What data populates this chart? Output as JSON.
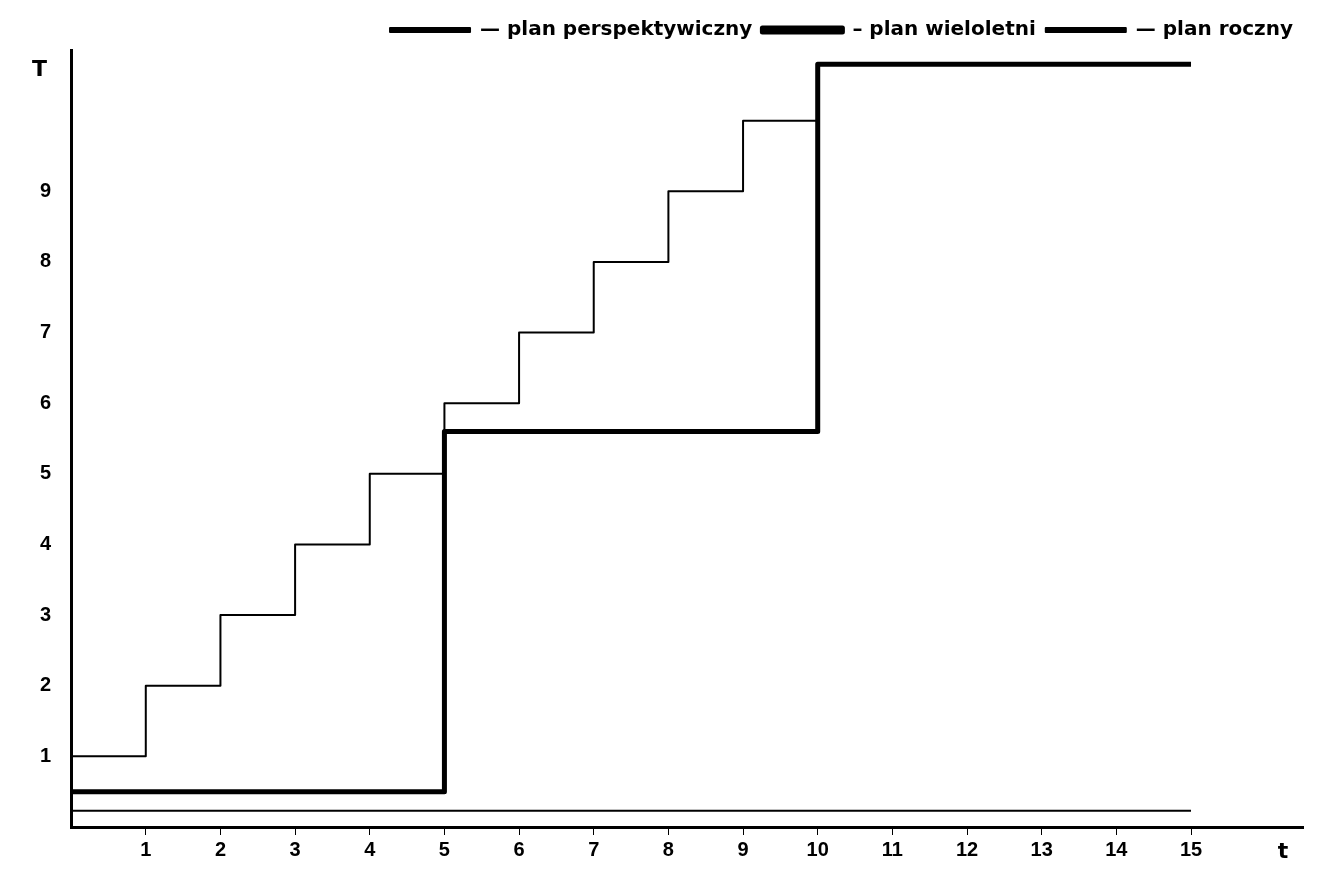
{
  "chart_data": {
    "type": "step",
    "xlabel": "t",
    "ylabel": "T",
    "xlim": [
      0,
      16.5
    ],
    "ylim": [
      0,
      11
    ],
    "xticks": [
      1,
      2,
      3,
      4,
      5,
      6,
      7,
      8,
      9,
      10,
      11,
      12,
      13,
      14,
      15
    ],
    "yticks": [
      1,
      2,
      3,
      4,
      5,
      6,
      7,
      8,
      9
    ],
    "grid": false,
    "legend": "top right",
    "marker": "none",
    "series": [
      {
        "name": "— plan perspektywiczny",
        "color": "#000000",
        "x": [
          0,
          15
        ],
        "values": [
          0.23,
          0.23
        ]
      },
      {
        "name": "– plan wieloletni",
        "color": "#000000",
        "x": [
          0,
          5,
          10,
          15
        ],
        "values": [
          0.5,
          5.6,
          10.8,
          10.8
        ]
      },
      {
        "name": "— plan roczny",
        "color": "#000000",
        "x": [
          0,
          1,
          2,
          3,
          4,
          5,
          6,
          7,
          8,
          9,
          10
        ],
        "values": [
          1,
          2,
          3,
          4,
          5,
          6,
          7,
          8,
          9,
          10,
          10
        ]
      }
    ]
  }
}
